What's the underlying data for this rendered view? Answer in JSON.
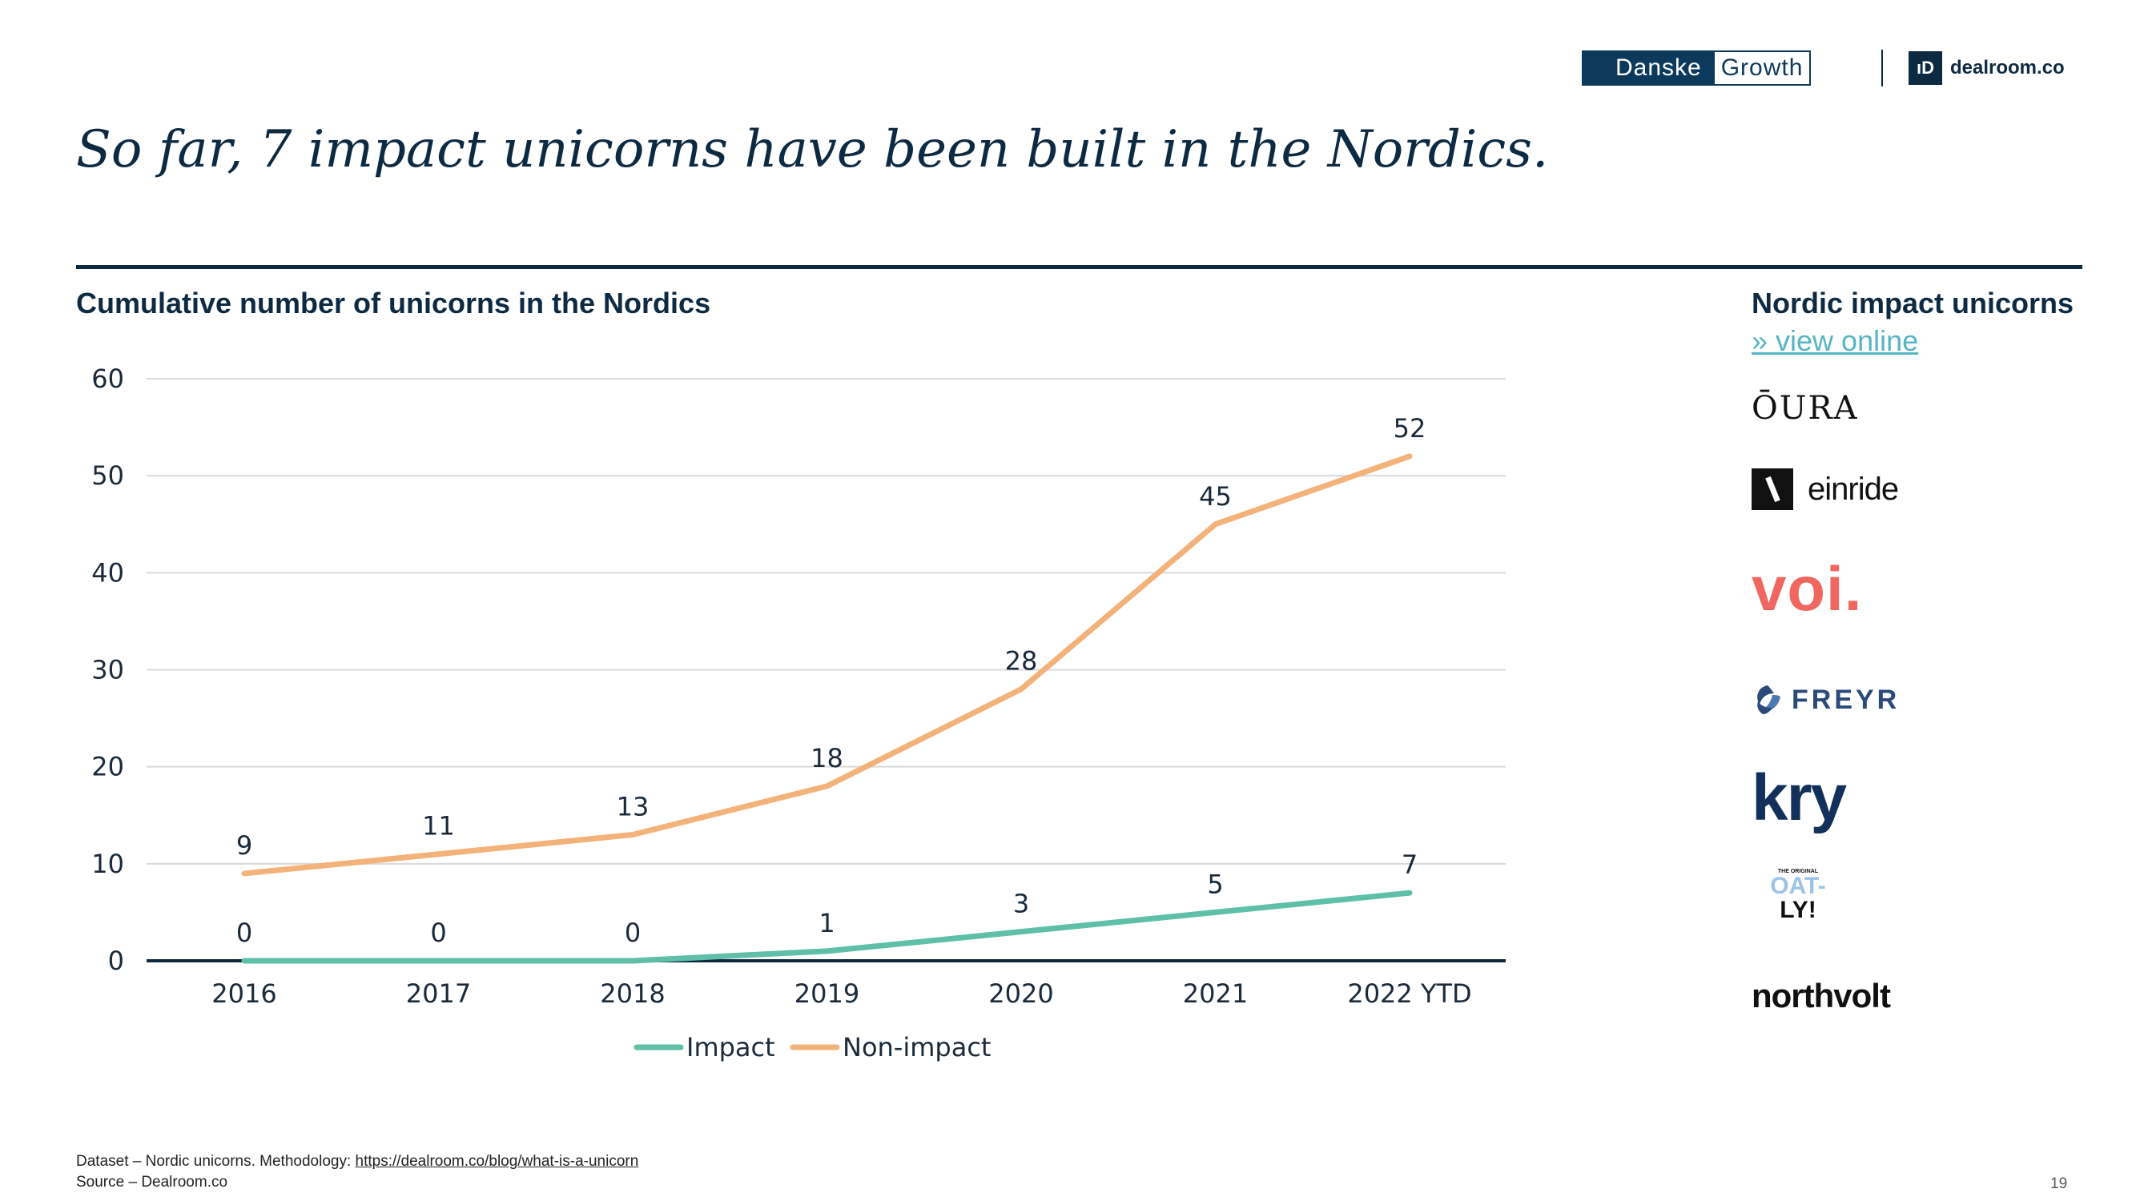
{
  "header": {
    "danske_left": "Danske",
    "danske_right": "Growth",
    "dealroom_mark": "ıD",
    "dealroom_name": "dealroom.co"
  },
  "title": "So far, 7 impact unicorns have been built in the Nordics.",
  "colors": {
    "impact": "#5fbfa9",
    "non_impact": "#f3b27a",
    "navy": "#0d2a43",
    "grid": "#d9d9d9"
  },
  "chart_data": {
    "type": "line",
    "title": "Cumulative number of unicorns in the Nordics",
    "categories": [
      "2016",
      "2017",
      "2018",
      "2019",
      "2020",
      "2021",
      "2022 YTD"
    ],
    "series": [
      {
        "name": "Impact",
        "values": [
          0,
          0,
          0,
          1,
          3,
          5,
          7
        ],
        "color": "#5fbfa9"
      },
      {
        "name": "Non-impact",
        "values": [
          9,
          11,
          13,
          18,
          28,
          45,
          52
        ],
        "color": "#f3b27a"
      }
    ],
    "y_ticks": [
      0,
      10,
      20,
      30,
      40,
      50,
      60
    ],
    "ylim": [
      0,
      60
    ],
    "xlabel": "",
    "ylabel": "",
    "grid": true,
    "legend": "bottom-center"
  },
  "side_panel": {
    "title": "Nordic impact unicorns",
    "link": "» view online",
    "logos": {
      "oura": "ŌURA",
      "einride": "einride",
      "voi": "voi.",
      "freyr": "FREYR",
      "kry": "kry",
      "oatly_small": "THE ORIGINAL",
      "oatly_top": "OAT-",
      "oatly_bottom": "LY!",
      "northvolt": "northvolt"
    }
  },
  "footer": {
    "dataset": "Dataset – Nordic unicorns. Methodology:",
    "methodology_link": "https://dealroom.co/blog/what-is-a-unicorn",
    "source": "Source – Dealroom.co",
    "page": "19"
  }
}
